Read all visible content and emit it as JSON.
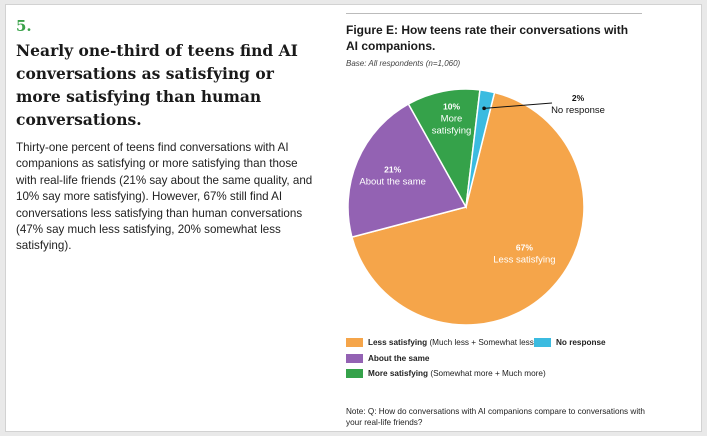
{
  "section": {
    "number": "5.",
    "headline": "Nearly one-third of teens find AI conversations as satisfying or more satisfying than human conversations.",
    "body": "Thirty-one percent of teens find conversations with AI companions as satisfying or more satisfying than those with real-life friends (21% say about the same quality, and 10% say more satisfying). However, 67% still find AI conversations less satisfying than human conversations (47% say much less satisfying, 20% somewhat less satisfying)."
  },
  "figure": {
    "title": "Figure E: How teens rate their conversations with AI companions.",
    "base": "Base: All respondents (n=1,060)",
    "note": "Note: Q: How do conversations with AI companions compare to conversations with your real-life friends?"
  },
  "legend": [
    {
      "label": "Less satisfying",
      "sub": "(Much less + Somewhat less)",
      "color": "#f5a54a"
    },
    {
      "label": "No response",
      "sub": "",
      "color": "#3bbbe0"
    },
    {
      "label": "About the same",
      "sub": "",
      "color": "#9362b3"
    },
    {
      "label": "More satisfying",
      "sub": "(Somewhat more + Much more)",
      "color": "#35a24a"
    }
  ],
  "chart_data": {
    "type": "pie",
    "title": "Figure E: How teens rate their conversations with AI companions.",
    "slices": [
      {
        "label": "Less satisfying",
        "value": 67,
        "display": "67%",
        "color": "#f5a54a"
      },
      {
        "label": "About the same",
        "value": 21,
        "display": "21%",
        "color": "#9362b3"
      },
      {
        "label": "More satisfying",
        "value": 10,
        "display": "10%",
        "color": "#35a24a"
      },
      {
        "label": "No response",
        "value": 2,
        "display": "2%",
        "color": "#3bbbe0"
      }
    ]
  }
}
